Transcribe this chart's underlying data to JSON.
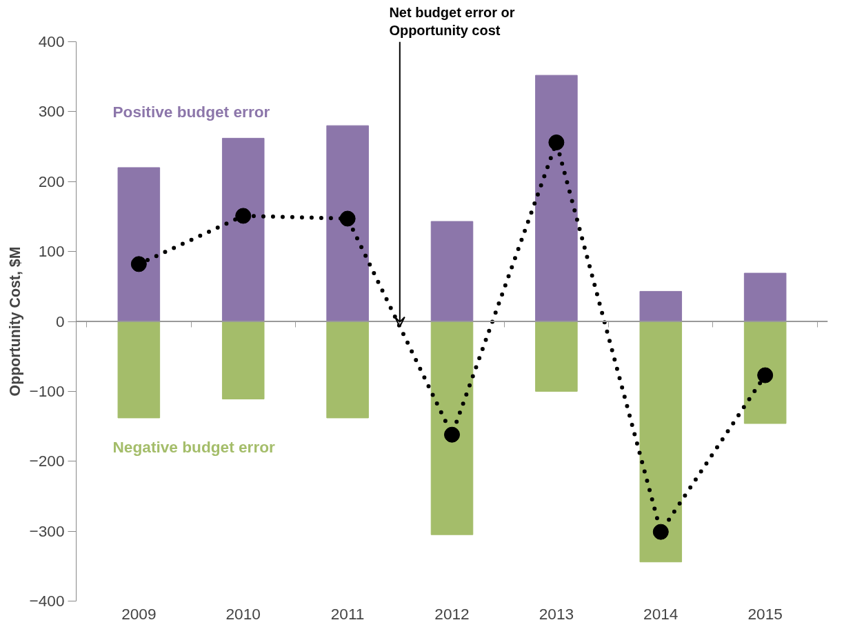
{
  "chart_data": {
    "type": "bar",
    "ylabel": "Opportunity Cost, $M",
    "categories": [
      "2009",
      "2010",
      "2011",
      "2012",
      "2013",
      "2014",
      "2015"
    ],
    "series": [
      {
        "name": "Positive budget error",
        "color": "#8c76aa",
        "values": [
          220,
          262,
          280,
          143,
          352,
          43,
          69
        ]
      },
      {
        "name": "Negative budget error",
        "color": "#a4bd6a",
        "values": [
          -138,
          -111,
          -138,
          -305,
          -100,
          -344,
          -146
        ]
      },
      {
        "name": "Net budget error or Opportunity cost",
        "type": "line",
        "color": "#000000",
        "marker": "circle",
        "line_style": "dotted",
        "values": [
          82,
          151,
          147,
          -162,
          256,
          -301,
          -77
        ]
      }
    ],
    "stacked": true,
    "ref_lines": [
      {
        "axis": "y",
        "value": 0,
        "color": "#999999"
      }
    ],
    "ylim": [
      -400,
      400
    ],
    "yticks": [
      -400,
      -300,
      -200,
      -100,
      0,
      100,
      200,
      300,
      400
    ],
    "grid": false,
    "legend": false
  }
}
